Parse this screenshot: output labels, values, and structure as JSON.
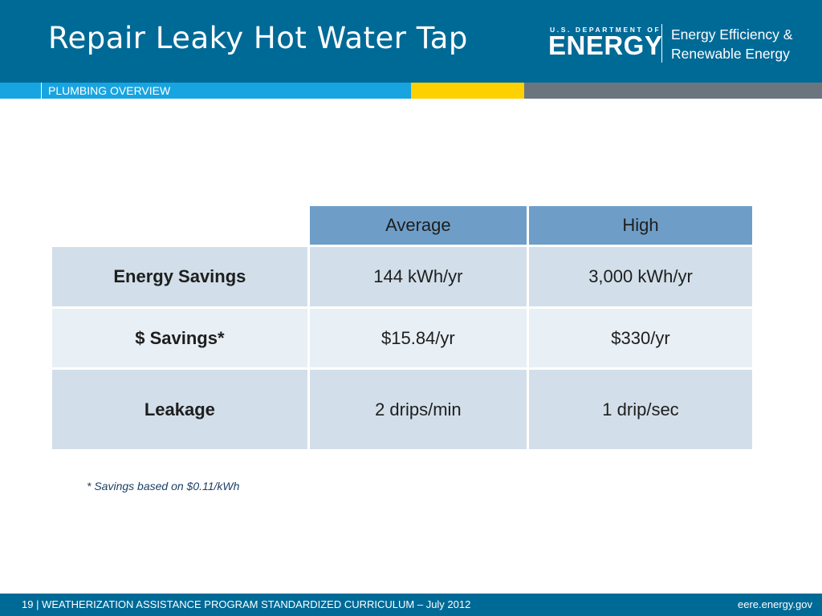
{
  "slide": {
    "title": "Repair Leaky Hot Water Tap",
    "section": "PLUMBING OVERVIEW"
  },
  "logo": {
    "top_line": "U.S. DEPARTMENT OF",
    "wordmark": "ENERGY",
    "program_line1": "Energy Efficiency &",
    "program_line2": "Renewable Energy"
  },
  "table": {
    "columns": [
      "",
      "Average",
      "High"
    ],
    "rows": [
      {
        "label": "Energy Savings",
        "average": "144 kWh/yr",
        "high": "3,000 kWh/yr"
      },
      {
        "label": "$ Savings*",
        "average": "$15.84/yr",
        "high": "$330/yr"
      },
      {
        "label": "Leakage",
        "average": "2 drips/min",
        "high": "1 drip/sec"
      }
    ]
  },
  "footnote": "* Savings based on $0.11/kWh",
  "footer": {
    "left": "19 | WEATHERIZATION ASSISTANCE PROGRAM STANDARDIZED CURRICULUM – July 2012",
    "right": "eere.energy.gov"
  },
  "colors": {
    "header_blue": "#006a97",
    "stripe_blue": "#18a4e0",
    "stripe_yellow": "#fdd000",
    "stripe_gray": "#6b7580",
    "table_header": "#6e9ec8",
    "table_row_dark": "#d2dfea",
    "table_row_light": "#e8eff5"
  }
}
